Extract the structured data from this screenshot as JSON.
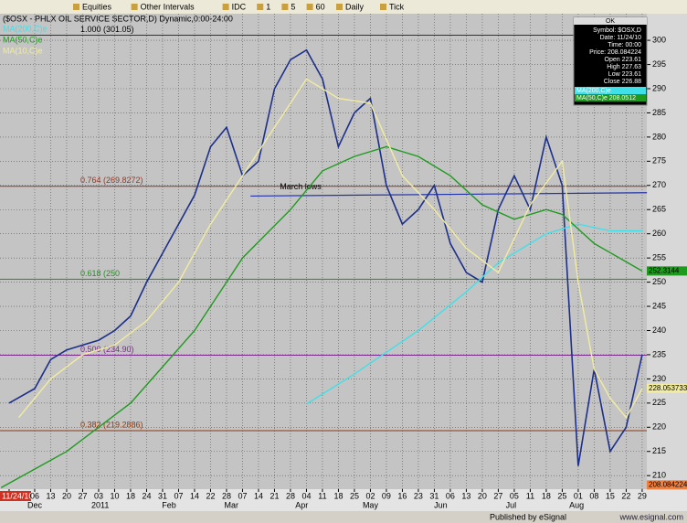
{
  "toolbar": {
    "items": [
      "Equities",
      "Other Intervals",
      "IDC",
      "1",
      "5",
      "60",
      "Daily",
      "Tick"
    ]
  },
  "info_box": {
    "title": "OK",
    "lines": [
      "Symbol: $OSX,D",
      "Date: 11/24/10",
      "Time: 00:00",
      "Price: 208.084224",
      "Open 223.61",
      "High 227.63",
      "Low 223.61",
      "Close 226.88"
    ],
    "ma_lines": [
      "MA(200,C)e",
      "MA(50,C)e 208.0512"
    ]
  },
  "footer": {
    "left": "Published by eSignal",
    "right": "www.esignal.com"
  },
  "chart_data": {
    "type": "line",
    "title": "($OSX - PHLX OIL SERVICE SECTOR,D) Dynamic,0:00-24:00",
    "xlim": [
      -2.17,
      38.29
    ],
    "ylim": [
      207.2,
      305.5
    ],
    "yticks": [
      210,
      215,
      220,
      225,
      230,
      235,
      240,
      245,
      250,
      255,
      260,
      265,
      270,
      275,
      280,
      285,
      290,
      295,
      300
    ],
    "xticks": [
      {
        "value": -1.6,
        "label": "11/24/10"
      },
      {
        "value": 0,
        "label": "06"
      },
      {
        "value": 1,
        "label": "13"
      },
      {
        "value": 2,
        "label": "20"
      },
      {
        "value": 3,
        "label": "27"
      },
      {
        "value": 4,
        "label": "03"
      },
      {
        "value": 5,
        "label": "10"
      },
      {
        "value": 6,
        "label": "18"
      },
      {
        "value": 7,
        "label": "24"
      },
      {
        "value": 8,
        "label": "31"
      },
      {
        "value": 9,
        "label": "07"
      },
      {
        "value": 10,
        "label": "14"
      },
      {
        "value": 11,
        "label": "22"
      },
      {
        "value": 12,
        "label": "28"
      },
      {
        "value": 13,
        "label": "07"
      },
      {
        "value": 14,
        "label": "14"
      },
      {
        "value": 15,
        "label": "21"
      },
      {
        "value": 16,
        "label": "28"
      },
      {
        "value": 17,
        "label": "04"
      },
      {
        "value": 18,
        "label": "11"
      },
      {
        "value": 19,
        "label": "18"
      },
      {
        "value": 20,
        "label": "25"
      },
      {
        "value": 21,
        "label": "02"
      },
      {
        "value": 22,
        "label": "09"
      },
      {
        "value": 23,
        "label": "16"
      },
      {
        "value": 24,
        "label": "23"
      },
      {
        "value": 25,
        "label": "31"
      },
      {
        "value": 26,
        "label": "06"
      },
      {
        "value": 27,
        "label": "13"
      },
      {
        "value": 28,
        "label": "20"
      },
      {
        "value": 29,
        "label": "27"
      },
      {
        "value": 30,
        "label": "05"
      },
      {
        "value": 31,
        "label": "11"
      },
      {
        "value": 32,
        "label": "18"
      },
      {
        "value": 33,
        "label": "25"
      },
      {
        "value": 34,
        "label": "01"
      },
      {
        "value": 35,
        "label": "08"
      },
      {
        "value": 36,
        "label": "15"
      },
      {
        "value": 37,
        "label": "22"
      },
      {
        "value": 38,
        "label": "29"
      }
    ],
    "month_labels": [
      {
        "value": 0,
        "label": "Dec"
      },
      {
        "value": 4.1,
        "label": "2011"
      },
      {
        "value": 8.4,
        "label": "Feb"
      },
      {
        "value": 12.3,
        "label": "Mar"
      },
      {
        "value": 16.7,
        "label": "Apr"
      },
      {
        "value": 21,
        "label": "May"
      },
      {
        "value": 25.4,
        "label": "Jun"
      },
      {
        "value": 29.8,
        "label": "Jul"
      },
      {
        "value": 33.9,
        "label": "Aug"
      }
    ],
    "grid": true,
    "series": [
      {
        "color": "#1c2f8a",
        "x": [
          -1.6,
          0,
          1,
          2,
          3,
          4,
          5,
          6,
          7,
          8,
          9,
          10,
          11,
          12,
          13,
          14,
          15,
          16,
          17,
          18,
          19,
          20,
          21,
          22,
          23,
          24,
          25,
          26,
          27,
          28,
          29,
          30,
          31,
          32,
          33,
          34,
          35,
          36,
          37,
          38
        ],
        "values": [
          225,
          228,
          234,
          236,
          237,
          238,
          240,
          243,
          250,
          256,
          262,
          268,
          278,
          282,
          272,
          275,
          290,
          296,
          298,
          292,
          278,
          285,
          288,
          270,
          262,
          265,
          270,
          258,
          252,
          250,
          265,
          272,
          265,
          280,
          270,
          212,
          232,
          215,
          220,
          235
        ]
      },
      {
        "name": "MA(200,C)e",
        "color": "#40e0e8",
        "x": [
          17,
          20,
          24,
          27,
          29,
          32,
          34,
          36,
          38
        ],
        "values": [
          224.8,
          231,
          240,
          248,
          254,
          260,
          262,
          260.6,
          260.6
        ]
      },
      {
        "name": "MA(50,C)e",
        "color": "#1e9a1e",
        "x": [
          -2.1,
          2,
          6,
          10,
          13,
          16,
          18,
          20,
          22,
          24,
          26,
          28,
          30,
          32,
          33,
          35,
          38
        ],
        "values": [
          207.5,
          215,
          225,
          240,
          255,
          265,
          273,
          276,
          278,
          276,
          272,
          266,
          263,
          265,
          264,
          258,
          252.3
        ]
      },
      {
        "name": "MA(10,C)e",
        "color": "#f2eca0",
        "x": [
          -1,
          1,
          3,
          5,
          7,
          9,
          11,
          13,
          15,
          17,
          19,
          21,
          23,
          25,
          27,
          29,
          31,
          33,
          34,
          35,
          36,
          37,
          38
        ],
        "values": [
          222,
          230,
          235,
          237,
          242,
          250,
          262,
          272,
          282,
          292,
          288,
          287,
          272,
          265,
          257,
          252,
          266,
          275,
          250,
          232,
          226,
          222,
          228
        ]
      }
    ],
    "levels": [
      {
        "value": 301.05,
        "label": "1.000 (301.05)",
        "color": "#333333"
      },
      {
        "value": 269.8272,
        "label": "0.764 (269.8272)",
        "color": "#8b3a2a"
      },
      {
        "value": 250.6,
        "label": "0.618 (250",
        "color": "#2a8a2a"
      },
      {
        "value": 234.9,
        "label": "0.500 (234.90)",
        "color": "#7a2a8a"
      },
      {
        "value": 219.2886,
        "label": "0.382 (219.2886)",
        "color": "#8a3a10"
      }
    ],
    "trendline": {
      "label": "March lows",
      "x": [
        13.5,
        38.3
      ],
      "values": [
        267.8,
        268.5
      ],
      "color": "#2233aa"
    },
    "axis_labels": [
      {
        "value": 252.3144,
        "label": "252.3144",
        "color": "#1e9a1e"
      },
      {
        "value": 228.053733,
        "label": "228.053733",
        "color": "#f2eca0"
      },
      {
        "value": 208.084224,
        "label": "208.084224",
        "color": "#f08040"
      }
    ]
  }
}
